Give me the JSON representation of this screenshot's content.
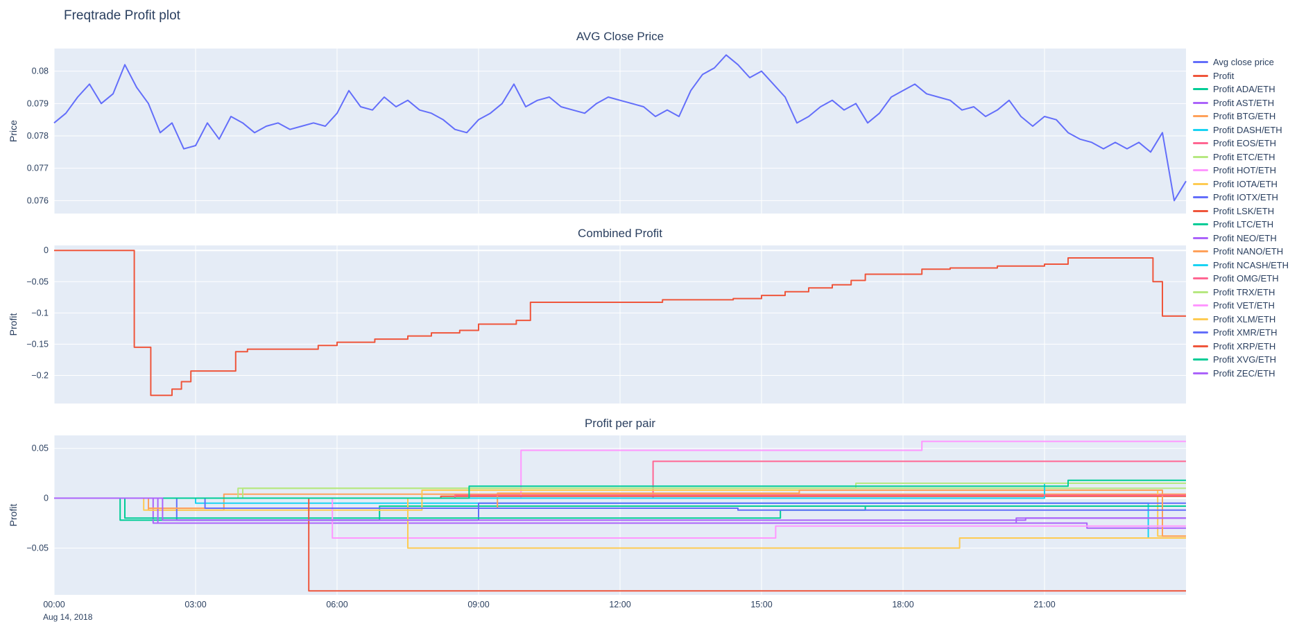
{
  "page_title": "Freqtrade Profit plot",
  "x_axis": {
    "range": [
      0,
      24
    ],
    "ticks": [
      {
        "v": 0,
        "label": "00:00"
      },
      {
        "v": 3,
        "label": "03:00"
      },
      {
        "v": 6,
        "label": "06:00"
      },
      {
        "v": 9,
        "label": "09:00"
      },
      {
        "v": 12,
        "label": "12:00"
      },
      {
        "v": 15,
        "label": "15:00"
      },
      {
        "v": 18,
        "label": "18:00"
      },
      {
        "v": 21,
        "label": "21:00"
      }
    ],
    "date_annotation": "Aug 14, 2018"
  },
  "legend": {
    "items": [
      {
        "label": "Avg close price",
        "color": "#636efa"
      },
      {
        "label": "Profit",
        "color": "#EF553B"
      },
      {
        "label": "Profit ADA/ETH",
        "color": "#00cc96"
      },
      {
        "label": "Profit AST/ETH",
        "color": "#ab63fa"
      },
      {
        "label": "Profit BTG/ETH",
        "color": "#FFA15A"
      },
      {
        "label": "Profit DASH/ETH",
        "color": "#19d3f3"
      },
      {
        "label": "Profit EOS/ETH",
        "color": "#FF6692"
      },
      {
        "label": "Profit ETC/ETH",
        "color": "#B6E880"
      },
      {
        "label": "Profit HOT/ETH",
        "color": "#FF97FF"
      },
      {
        "label": "Profit IOTA/ETH",
        "color": "#FECB52"
      },
      {
        "label": "Profit IOTX/ETH",
        "color": "#636efa"
      },
      {
        "label": "Profit LSK/ETH",
        "color": "#EF553B"
      },
      {
        "label": "Profit LTC/ETH",
        "color": "#00cc96"
      },
      {
        "label": "Profit NEO/ETH",
        "color": "#ab63fa"
      },
      {
        "label": "Profit NANO/ETH",
        "color": "#FFA15A"
      },
      {
        "label": "Profit NCASH/ETH",
        "color": "#19d3f3"
      },
      {
        "label": "Profit OMG/ETH",
        "color": "#FF6692"
      },
      {
        "label": "Profit TRX/ETH",
        "color": "#B6E880"
      },
      {
        "label": "Profit VET/ETH",
        "color": "#FF97FF"
      },
      {
        "label": "Profit XLM/ETH",
        "color": "#FECB52"
      },
      {
        "label": "Profit XMR/ETH",
        "color": "#636efa"
      },
      {
        "label": "Profit XRP/ETH",
        "color": "#EF553B"
      },
      {
        "label": "Profit XVG/ETH",
        "color": "#00cc96"
      },
      {
        "label": "Profit ZEC/ETH",
        "color": "#ab63fa"
      }
    ]
  },
  "chart_data": [
    {
      "type": "line",
      "title": "AVG Close Price",
      "ylabel": "Price",
      "ylim": [
        0.0756,
        0.0807
      ],
      "yticks": [
        {
          "v": 0.076,
          "label": "0.076"
        },
        {
          "v": 0.077,
          "label": "0.077"
        },
        {
          "v": 0.078,
          "label": "0.078"
        },
        {
          "v": 0.079,
          "label": "0.079"
        },
        {
          "v": 0.08,
          "label": "0.08"
        }
      ],
      "interp": "linear",
      "zeroline": false,
      "series": [
        {
          "name": "Avg close price",
          "color": "#636efa",
          "x_start": 0,
          "x_step": 0.25,
          "y": [
            0.0784,
            0.0787,
            0.0792,
            0.0796,
            0.079,
            0.0793,
            0.0802,
            0.0795,
            0.079,
            0.0781,
            0.0784,
            0.0776,
            0.0777,
            0.0784,
            0.0779,
            0.0786,
            0.0784,
            0.0781,
            0.0783,
            0.0784,
            0.0782,
            0.0783,
            0.0784,
            0.0783,
            0.0787,
            0.0794,
            0.0789,
            0.0788,
            0.0792,
            0.0789,
            0.0791,
            0.0788,
            0.0787,
            0.0785,
            0.0782,
            0.0781,
            0.0785,
            0.0787,
            0.079,
            0.0796,
            0.0789,
            0.0791,
            0.0792,
            0.0789,
            0.0788,
            0.0787,
            0.079,
            0.0792,
            0.0791,
            0.079,
            0.0789,
            0.0786,
            0.0788,
            0.0786,
            0.0794,
            0.0799,
            0.0801,
            0.0805,
            0.0802,
            0.0798,
            0.08,
            0.0796,
            0.0792,
            0.0784,
            0.0786,
            0.0789,
            0.0791,
            0.0788,
            0.079,
            0.0784,
            0.0787,
            0.0792,
            0.0794,
            0.0796,
            0.0793,
            0.0792,
            0.0791,
            0.0788,
            0.0789,
            0.0786,
            0.0788,
            0.0791,
            0.0786,
            0.0783,
            0.0786,
            0.0785,
            0.0781,
            0.0779,
            0.0778,
            0.0776,
            0.0778,
            0.0776,
            0.0778,
            0.0775,
            0.0781,
            0.076,
            0.0766
          ]
        }
      ]
    },
    {
      "type": "line",
      "title": "Combined Profit",
      "ylabel": "Profit",
      "ylim": [
        -0.245,
        0.008
      ],
      "yticks": [
        {
          "v": 0,
          "label": "0"
        },
        {
          "v": -0.05,
          "label": "−0.05"
        },
        {
          "v": -0.1,
          "label": "−0.1"
        },
        {
          "v": -0.15,
          "label": "−0.15"
        },
        {
          "v": -0.2,
          "label": "−0.2"
        }
      ],
      "interp": "hv",
      "zeroline": true,
      "series": [
        {
          "name": "Profit",
          "color": "#EF553B",
          "points": [
            [
              0,
              0
            ],
            [
              1.7,
              -0.155
            ],
            [
              2.05,
              -0.232
            ],
            [
              2.5,
              -0.222
            ],
            [
              2.7,
              -0.21
            ],
            [
              2.9,
              -0.193
            ],
            [
              3.85,
              -0.162
            ],
            [
              4.1,
              -0.158
            ],
            [
              5.6,
              -0.152
            ],
            [
              6.0,
              -0.147
            ],
            [
              6.8,
              -0.142
            ],
            [
              7.5,
              -0.137
            ],
            [
              8.0,
              -0.132
            ],
            [
              8.6,
              -0.128
            ],
            [
              9.0,
              -0.118
            ],
            [
              9.8,
              -0.112
            ],
            [
              10.1,
              -0.083
            ],
            [
              12.9,
              -0.079
            ],
            [
              14.4,
              -0.077
            ],
            [
              15.0,
              -0.072
            ],
            [
              15.5,
              -0.066
            ],
            [
              16.0,
              -0.06
            ],
            [
              16.5,
              -0.055
            ],
            [
              16.9,
              -0.048
            ],
            [
              17.2,
              -0.038
            ],
            [
              18.4,
              -0.03
            ],
            [
              19.0,
              -0.028
            ],
            [
              20.0,
              -0.025
            ],
            [
              21.0,
              -0.022
            ],
            [
              21.5,
              -0.012
            ],
            [
              23.3,
              -0.05
            ],
            [
              23.5,
              -0.105
            ],
            [
              24,
              -0.105
            ]
          ]
        }
      ]
    },
    {
      "type": "line",
      "title": "Profit per pair",
      "ylabel": "Profit",
      "ylim": [
        -0.097,
        0.063
      ],
      "yticks": [
        {
          "v": 0.05,
          "label": "0.05"
        },
        {
          "v": 0,
          "label": "0"
        },
        {
          "v": -0.05,
          "label": "−0.05"
        }
      ],
      "interp": "hv",
      "zeroline": true,
      "series": [
        {
          "name": "Profit ADA/ETH",
          "color": "#00cc96",
          "points": [
            [
              0,
              0
            ],
            [
              1.4,
              -0.022
            ],
            [
              6.9,
              -0.008
            ],
            [
              24,
              -0.008
            ]
          ]
        },
        {
          "name": "Profit AST/ETH",
          "color": "#ab63fa",
          "points": [
            [
              0,
              0
            ],
            [
              2.1,
              -0.025
            ],
            [
              20.4,
              -0.02
            ],
            [
              24,
              -0.02
            ]
          ]
        },
        {
          "name": "Profit BTG/ETH",
          "color": "#FFA15A",
          "points": [
            [
              0,
              0
            ],
            [
              2.0,
              -0.012
            ],
            [
              3.6,
              0.004
            ],
            [
              24,
              0.004
            ]
          ]
        },
        {
          "name": "Profit DASH/ETH",
          "color": "#19d3f3",
          "points": [
            [
              0,
              0
            ],
            [
              3.0,
              -0.005
            ],
            [
              23.2,
              -0.04
            ],
            [
              24,
              -0.04
            ]
          ]
        },
        {
          "name": "Profit EOS/ETH",
          "color": "#FF6692",
          "points": [
            [
              0,
              0
            ],
            [
              12.7,
              0.037
            ],
            [
              24,
              0.037
            ]
          ]
        },
        {
          "name": "Profit ETC/ETH",
          "color": "#B6E880",
          "points": [
            [
              0,
              0
            ],
            [
              3.9,
              0.01
            ],
            [
              24,
              0.01
            ]
          ]
        },
        {
          "name": "Profit HOT/ETH",
          "color": "#FF97FF",
          "points": [
            [
              0,
              0
            ],
            [
              9.9,
              0.048
            ],
            [
              18.4,
              0.057
            ],
            [
              24,
              0.057
            ]
          ]
        },
        {
          "name": "Profit IOTA/ETH",
          "color": "#FECB52",
          "points": [
            [
              0,
              0
            ],
            [
              1.9,
              -0.012
            ],
            [
              7.8,
              0.008
            ],
            [
              23.4,
              -0.038
            ],
            [
              24,
              -0.038
            ]
          ]
        },
        {
          "name": "Profit IOTX/ETH",
          "color": "#636efa",
          "points": [
            [
              0,
              0
            ],
            [
              2.6,
              -0.022
            ],
            [
              9.0,
              -0.005
            ],
            [
              24,
              -0.005
            ]
          ]
        },
        {
          "name": "Profit LSK/ETH",
          "color": "#EF553B",
          "points": [
            [
              0,
              0
            ],
            [
              8.2,
              0.002
            ],
            [
              24,
              0.002
            ]
          ]
        },
        {
          "name": "Profit LTC/ETH",
          "color": "#00cc96",
          "points": [
            [
              0,
              0
            ],
            [
              1.5,
              -0.02
            ],
            [
              15.4,
              -0.012
            ],
            [
              17.2,
              -0.008
            ],
            [
              24,
              -0.008
            ]
          ]
        },
        {
          "name": "Profit NEO/ETH",
          "color": "#ab63fa",
          "points": [
            [
              0,
              0
            ],
            [
              2.2,
              -0.025
            ],
            [
              21.9,
              -0.03
            ],
            [
              24,
              -0.03
            ]
          ]
        },
        {
          "name": "Profit NANO/ETH",
          "color": "#FFA15A",
          "points": [
            [
              0,
              0
            ],
            [
              2.0,
              -0.01
            ],
            [
              9.4,
              0.005
            ],
            [
              15.8,
              0.008
            ],
            [
              23.5,
              -0.038
            ],
            [
              24,
              -0.038
            ]
          ]
        },
        {
          "name": "Profit NCASH/ETH",
          "color": "#19d3f3",
          "points": [
            [
              0,
              0
            ],
            [
              21.0,
              0.015
            ],
            [
              24,
              0.015
            ]
          ]
        },
        {
          "name": "Profit OMG/ETH",
          "color": "#FF6692",
          "points": [
            [
              0,
              0
            ],
            [
              8.5,
              0.003
            ],
            [
              24,
              0.003
            ]
          ]
        },
        {
          "name": "Profit TRX/ETH",
          "color": "#B6E880",
          "points": [
            [
              0,
              0
            ],
            [
              4.0,
              0.01
            ],
            [
              17.0,
              0.015
            ],
            [
              24,
              0.015
            ]
          ]
        },
        {
          "name": "Profit VET/ETH",
          "color": "#FF97FF",
          "points": [
            [
              0,
              0
            ],
            [
              5.9,
              -0.04
            ],
            [
              15.3,
              -0.028
            ],
            [
              24,
              -0.028
            ]
          ]
        },
        {
          "name": "Profit XLM/ETH",
          "color": "#FECB52",
          "points": [
            [
              0,
              0
            ],
            [
              7.5,
              -0.05
            ],
            [
              19.2,
              -0.04
            ],
            [
              24,
              -0.04
            ]
          ]
        },
        {
          "name": "Profit XMR/ETH",
          "color": "#636efa",
          "points": [
            [
              0,
              0
            ],
            [
              3.2,
              -0.01
            ],
            [
              14.5,
              -0.012
            ],
            [
              24,
              -0.012
            ]
          ]
        },
        {
          "name": "Profit XRP/ETH",
          "color": "#EF553B",
          "points": [
            [
              0,
              0
            ],
            [
              5.4,
              -0.093
            ],
            [
              24,
              -0.093
            ]
          ]
        },
        {
          "name": "Profit XVG/ETH",
          "color": "#00cc96",
          "points": [
            [
              0,
              0
            ],
            [
              8.8,
              0.012
            ],
            [
              21.5,
              0.018
            ],
            [
              24,
              0.018
            ]
          ]
        },
        {
          "name": "Profit ZEC/ETH",
          "color": "#ab63fa",
          "points": [
            [
              0,
              0
            ],
            [
              2.3,
              -0.022
            ],
            [
              20.6,
              -0.02
            ],
            [
              24,
              -0.02
            ]
          ]
        }
      ]
    }
  ],
  "style": {
    "plot_bg": "#e5ecf6",
    "grid_color": "#ffffff",
    "text_color": "#2a3f5f"
  }
}
